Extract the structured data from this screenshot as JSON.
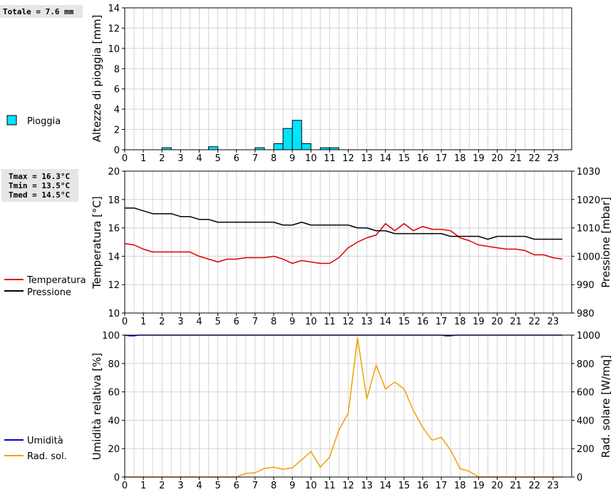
{
  "chart_data": [
    {
      "type": "bar",
      "id": "rain",
      "ylabel": "Altezze di pioggia [mm]",
      "ylim": [
        0,
        14
      ],
      "yticks": [
        0,
        2,
        4,
        6,
        8,
        10,
        12,
        14
      ],
      "xlim": [
        0,
        24
      ],
      "xticks": [
        0,
        1,
        2,
        3,
        4,
        5,
        6,
        7,
        8,
        9,
        10,
        11,
        12,
        13,
        14,
        15,
        16,
        17,
        18,
        19,
        20,
        21,
        22,
        23
      ],
      "grid": true,
      "legend": "left",
      "summary": "Totale = 7.6 mm",
      "series": [
        {
          "name": "Pioggia",
          "color": "#00e5ff",
          "bin_width": 0.5,
          "x": [
            2.0,
            4.5,
            7.0,
            8.0,
            8.5,
            9.0,
            9.5,
            10.5,
            11.0
          ],
          "values": [
            0.2,
            0.3,
            0.2,
            0.6,
            2.1,
            2.9,
            0.6,
            0.2,
            0.2
          ]
        }
      ]
    },
    {
      "type": "line",
      "id": "temp-press",
      "ylabel": "Temperatura [°C]",
      "ylabel_right": "Pressione [mbar]",
      "ylim": [
        10,
        20
      ],
      "yticks": [
        10,
        12,
        14,
        16,
        18,
        20
      ],
      "ylim_right": [
        980,
        1030
      ],
      "yticks_right": [
        980,
        990,
        1000,
        1010,
        1020,
        1030
      ],
      "xlim": [
        0,
        24
      ],
      "xticks": [
        0,
        1,
        2,
        3,
        4,
        5,
        6,
        7,
        8,
        9,
        10,
        11,
        12,
        13,
        14,
        15,
        16,
        17,
        18,
        19,
        20,
        21,
        22,
        23
      ],
      "grid": true,
      "legend": "left",
      "stats": [
        "Tmax = 16.3°C",
        "Tmin = 13.5°C",
        "Tmed = 14.5°C"
      ],
      "series": [
        {
          "name": "Temperatura",
          "color": "#dd0000",
          "axis": "left",
          "x": [
            0,
            0.5,
            1,
            1.5,
            2,
            2.5,
            3,
            3.5,
            4,
            4.5,
            5,
            5.5,
            6,
            6.5,
            7,
            7.5,
            8,
            8.5,
            9,
            9.5,
            10,
            10.5,
            11,
            11.5,
            12,
            12.5,
            13,
            13.5,
            14,
            14.5,
            15,
            15.5,
            16,
            16.5,
            17,
            17.5,
            18,
            18.5,
            19,
            19.5,
            20,
            20.5,
            21,
            21.5,
            22,
            22.5,
            23,
            23.5
          ],
          "values": [
            14.9,
            14.8,
            14.5,
            14.3,
            14.3,
            14.3,
            14.3,
            14.3,
            14.0,
            13.8,
            13.6,
            13.8,
            13.8,
            13.9,
            13.9,
            13.9,
            14.0,
            13.8,
            13.5,
            13.7,
            13.6,
            13.5,
            13.5,
            13.9,
            14.6,
            15.0,
            15.3,
            15.5,
            16.3,
            15.8,
            16.3,
            15.8,
            16.1,
            15.9,
            15.9,
            15.8,
            15.3,
            15.1,
            14.8,
            14.7,
            14.6,
            14.5,
            14.5,
            14.4,
            14.1,
            14.1,
            13.9,
            13.8
          ]
        },
        {
          "name": "Pressione",
          "color": "#000000",
          "axis": "right",
          "x": [
            0,
            0.5,
            1,
            1.5,
            2,
            2.5,
            3,
            3.5,
            4,
            4.5,
            5,
            5.5,
            6,
            6.5,
            7,
            7.5,
            8,
            8.5,
            9,
            9.5,
            10,
            10.5,
            11,
            11.5,
            12,
            12.5,
            13,
            13.5,
            14,
            14.5,
            15,
            15.5,
            16,
            16.5,
            17,
            17.5,
            18,
            18.5,
            19,
            19.5,
            20,
            20.5,
            21,
            21.5,
            22,
            22.5,
            23,
            23.5
          ],
          "values": [
            1017,
            1017,
            1016,
            1015,
            1015,
            1015,
            1014,
            1014,
            1013,
            1013,
            1012,
            1012,
            1012,
            1012,
            1012,
            1012,
            1012,
            1011,
            1011,
            1012,
            1011,
            1011,
            1011,
            1011,
            1011,
            1010,
            1010,
            1009,
            1009,
            1008,
            1008,
            1008,
            1008,
            1008,
            1008,
            1007,
            1007,
            1007,
            1007,
            1006,
            1007,
            1007,
            1007,
            1007,
            1006,
            1006,
            1006,
            1006
          ]
        }
      ]
    },
    {
      "type": "line",
      "id": "hum-rad",
      "ylabel": "Umidità relativa [%]",
      "ylabel_right": "Rad. solare [W/mq]",
      "ylim": [
        0,
        100
      ],
      "yticks": [
        0,
        20,
        40,
        60,
        80,
        100
      ],
      "ylim_right": [
        0,
        1000
      ],
      "yticks_right": [
        0,
        200,
        400,
        600,
        800,
        1000
      ],
      "xlim": [
        0,
        24
      ],
      "xticks": [
        0,
        1,
        2,
        3,
        4,
        5,
        6,
        7,
        8,
        9,
        10,
        11,
        12,
        13,
        14,
        15,
        16,
        17,
        18,
        19,
        20,
        21,
        22,
        23
      ],
      "grid": true,
      "legend": "left",
      "series": [
        {
          "name": "Umidità",
          "color": "#0000cc",
          "axis": "left",
          "x": [
            0,
            0.25,
            0.5,
            0.75,
            1,
            2,
            4,
            6,
            8,
            10,
            12,
            14,
            16,
            17,
            17.25,
            17.5,
            17.75,
            18,
            20,
            22,
            23.5
          ],
          "values": [
            100,
            99.5,
            99.5,
            100,
            100,
            100,
            100,
            100,
            100,
            100,
            100,
            100,
            100,
            100,
            99.5,
            99.5,
            100,
            100,
            100,
            100,
            100
          ]
        },
        {
          "name": "Rad. sol.",
          "color": "#f0a000",
          "axis": "right",
          "x": [
            0,
            0.5,
            1,
            1.5,
            2,
            2.5,
            3,
            3.5,
            4,
            4.5,
            5,
            5.5,
            6,
            6.5,
            7,
            7.5,
            8,
            8.5,
            9,
            9.5,
            10,
            10.5,
            11,
            11.5,
            12,
            12.5,
            13,
            13.5,
            14,
            14.5,
            15,
            15.5,
            16,
            16.5,
            17,
            17.5,
            18,
            18.5,
            19,
            19.5,
            20,
            20.5,
            21,
            21.5,
            22,
            22.5,
            23,
            23.5
          ],
          "values": [
            0,
            0,
            0,
            0,
            0,
            0,
            0,
            0,
            0,
            0,
            0,
            0,
            0,
            25,
            30,
            60,
            70,
            55,
            65,
            120,
            180,
            70,
            140,
            330,
            450,
            980,
            550,
            790,
            620,
            670,
            620,
            470,
            350,
            260,
            280,
            190,
            60,
            40,
            0,
            0,
            0,
            0,
            0,
            0,
            0,
            0,
            0,
            0
          ]
        }
      ]
    }
  ]
}
